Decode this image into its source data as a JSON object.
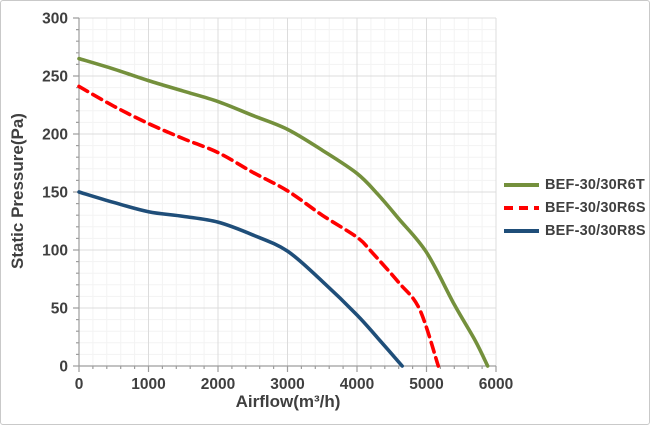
{
  "chart_data": {
    "type": "line",
    "title": "",
    "xlabel": "Airflow(m³/h)",
    "ylabel": "Static Pressure(Pa)",
    "xlim": [
      0,
      6000
    ],
    "ylim": [
      0,
      300
    ],
    "x_major_step": 1000,
    "x_minor_step": 200,
    "y_major_step": 50,
    "y_minor_step": 10,
    "x_ticks": [
      "0",
      "1000",
      "2000",
      "3000",
      "4000",
      "5000",
      "6000"
    ],
    "y_ticks": [
      "0",
      "50",
      "100",
      "150",
      "200",
      "250",
      "300"
    ],
    "grid": "major+minor",
    "legend_position": "right-middle",
    "colors": {
      "major_grid": "#dcdcdc",
      "minor_grid": "#f3f3f3",
      "axis_line": "#9d9d9d",
      "text": "#3f3f3f"
    },
    "series": [
      {
        "name": "BEF-30/30R6T",
        "color": "#74903C",
        "style": "solid",
        "points": [
          [
            0,
            265
          ],
          [
            500,
            256
          ],
          [
            1000,
            246
          ],
          [
            1500,
            237
          ],
          [
            2000,
            228
          ],
          [
            2500,
            216
          ],
          [
            3000,
            204
          ],
          [
            3500,
            186
          ],
          [
            4000,
            166
          ],
          [
            4300,
            148
          ],
          [
            4600,
            127
          ],
          [
            5000,
            98
          ],
          [
            5400,
            53
          ],
          [
            5700,
            22
          ],
          [
            5880,
            0
          ]
        ]
      },
      {
        "name": "BEF-30/30R6S",
        "color": "#FF0000",
        "style": "dashed",
        "points": [
          [
            0,
            241
          ],
          [
            500,
            224
          ],
          [
            1000,
            209
          ],
          [
            1500,
            196
          ],
          [
            2000,
            184
          ],
          [
            2500,
            167
          ],
          [
            3000,
            151
          ],
          [
            3500,
            130
          ],
          [
            4000,
            111
          ],
          [
            4200,
            99
          ],
          [
            4600,
            72
          ],
          [
            4900,
            49
          ],
          [
            5170,
            0
          ]
        ]
      },
      {
        "name": "BEF-30/30R8S",
        "color": "#1F4E79",
        "style": "solid",
        "points": [
          [
            0,
            150
          ],
          [
            500,
            141
          ],
          [
            1000,
            133
          ],
          [
            1500,
            129
          ],
          [
            2000,
            124
          ],
          [
            2500,
            113
          ],
          [
            3000,
            99
          ],
          [
            3500,
            73
          ],
          [
            4000,
            44
          ],
          [
            4300,
            24
          ],
          [
            4650,
            0
          ]
        ]
      }
    ]
  }
}
